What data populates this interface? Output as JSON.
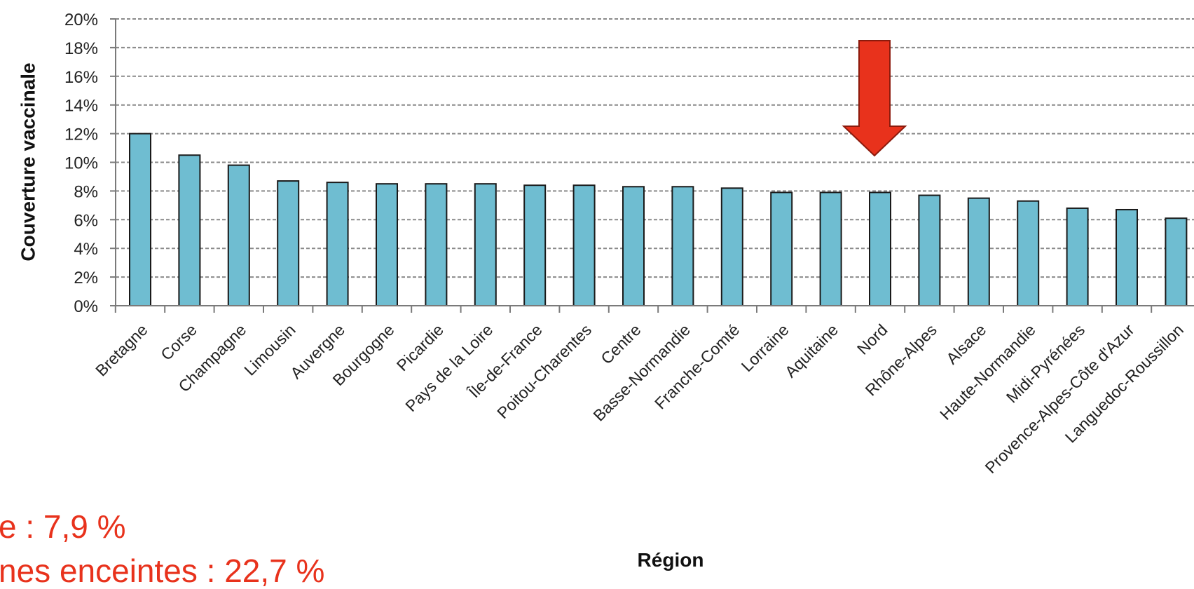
{
  "chart_data": {
    "type": "bar",
    "ylabel": "Couverture vaccinale",
    "xlabel": "Région",
    "ylim": [
      0,
      20
    ],
    "y_ticks": [
      "0%",
      "2%",
      "4%",
      "6%",
      "8%",
      "10%",
      "12%",
      "14%",
      "16%",
      "18%",
      "20%"
    ],
    "grid": true,
    "categories": [
      "Bretagne",
      "Corse",
      "Champagne",
      "Limousin",
      "Auvergne",
      "Bourgogne",
      "Picardie",
      "Pays de la Loire",
      "Île-de-France",
      "Poitou-Charentes",
      "Centre",
      "Basse-Normandie",
      "Franche-Comté",
      "Lorraine",
      "Aquitaine",
      "Nord",
      "Rhône-Alpes",
      "Alsace",
      "Haute-Normandie",
      "Midi-Pyrénées",
      "Provence-Alpes-Côte d'Azur",
      "Languedoc-Roussillon"
    ],
    "values": [
      12.0,
      10.5,
      9.8,
      8.7,
      8.6,
      8.5,
      8.5,
      8.5,
      8.4,
      8.4,
      8.3,
      8.3,
      8.2,
      7.9,
      7.9,
      7.9,
      7.7,
      7.5,
      7.3,
      6.8,
      6.7,
      6.1
    ],
    "highlight": "Nord",
    "colors": {
      "bar_fill": "#6fbdd1",
      "bar_stroke": "#1a1a1a",
      "grid": "#8a8a8a",
      "arrow_fill": "#e8321c",
      "arrow_stroke": "#8c1a0c",
      "note_text": "#e8321c"
    }
  },
  "notes": {
    "line1": "e : 7,9 %",
    "line2": "nes enceintes : 22,7 %"
  }
}
